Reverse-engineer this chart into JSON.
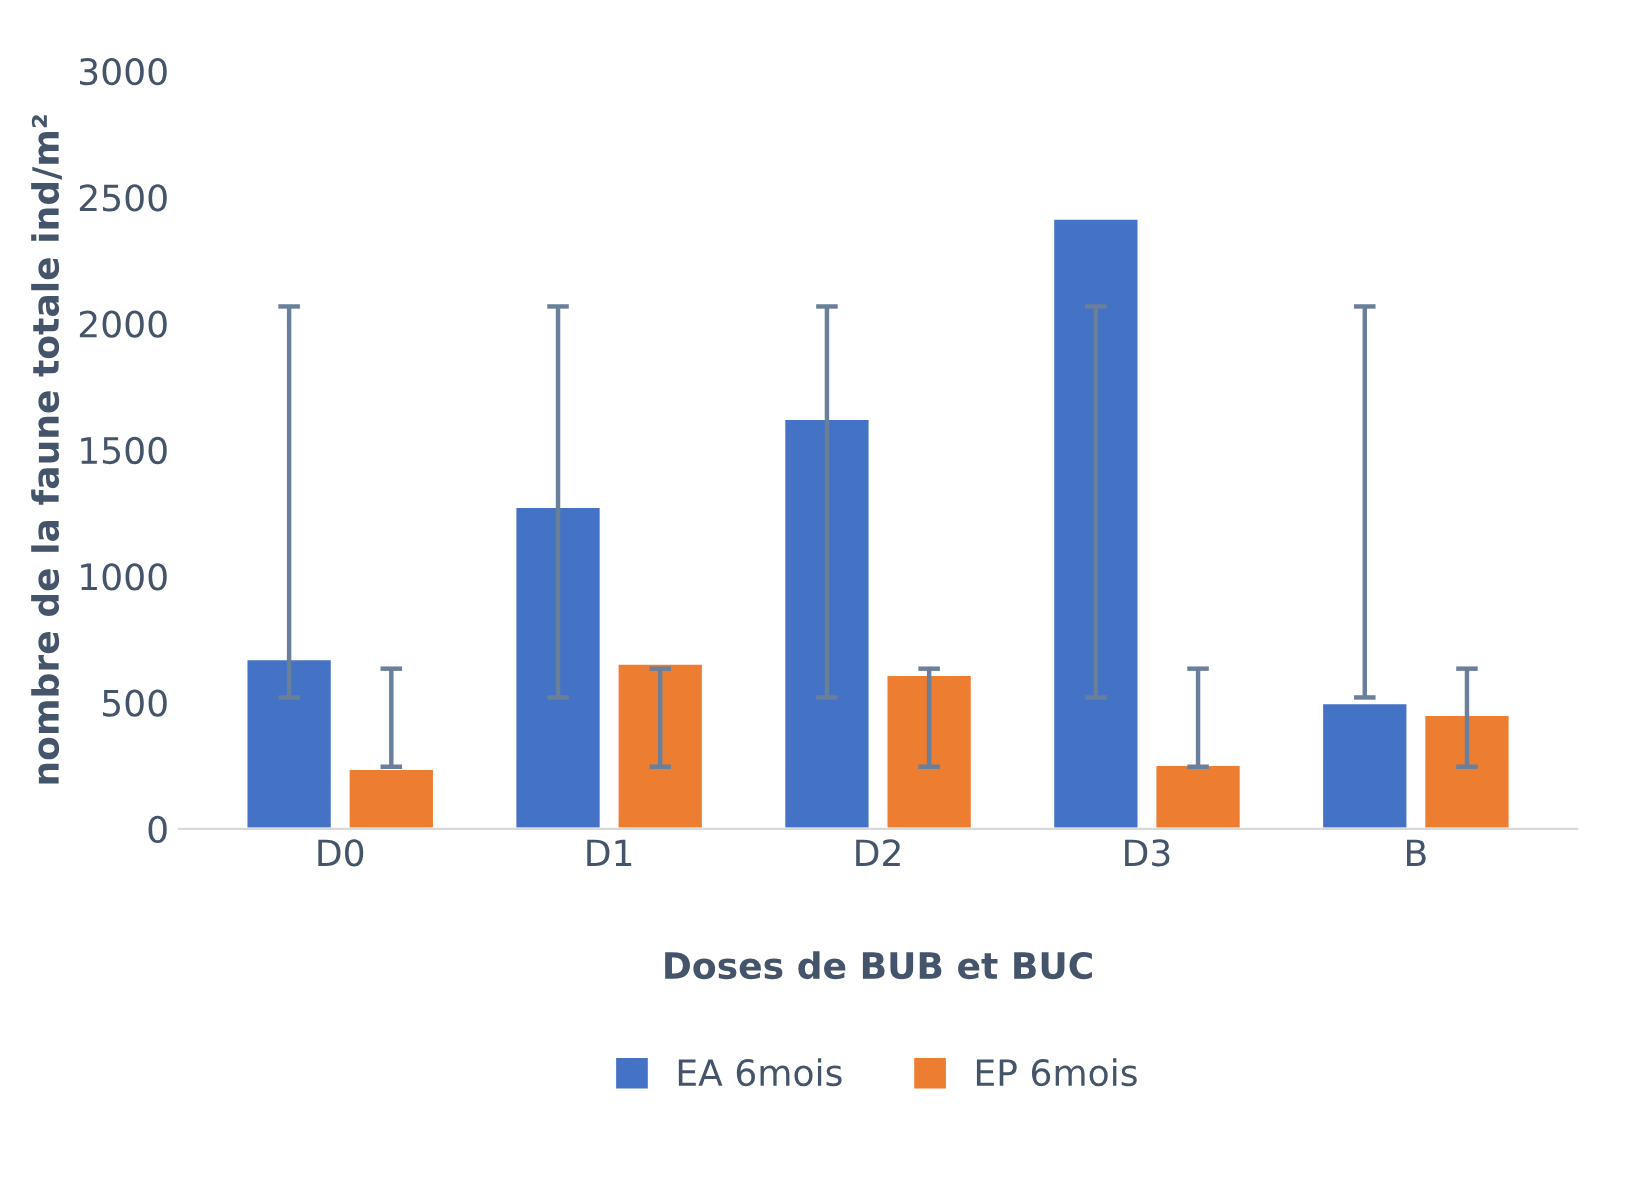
{
  "chart_data": {
    "type": "bar",
    "xlabel": "Doses de BUB et BUC",
    "ylabel": "nombre de la faune totale ind/m²",
    "categories": [
      "D0",
      "D1",
      "D2",
      "D3",
      "B"
    ],
    "series": [
      {
        "name": "EA 6mois",
        "color": "#4472c4",
        "values": [
          673,
          1276,
          1624,
          2417,
          499
        ],
        "errors": [
          [
            520,
            2068
          ],
          [
            520,
            2068
          ],
          [
            520,
            2068
          ],
          [
            520,
            2068
          ],
          [
            520,
            2068
          ]
        ]
      },
      {
        "name": "EP 6mois",
        "color": "#ed7d31",
        "values": [
          238,
          655,
          610,
          254,
          452
        ],
        "errors": [
          [
            246,
            634
          ],
          [
            246,
            634
          ],
          [
            246,
            634
          ],
          [
            246,
            634
          ],
          [
            246,
            634
          ]
        ]
      }
    ],
    "ylim": [
      0,
      3000
    ],
    "yticks": [
      0,
      500,
      1000,
      1500,
      2000,
      2500,
      3000
    ],
    "grid": false,
    "legend": "bottom"
  }
}
